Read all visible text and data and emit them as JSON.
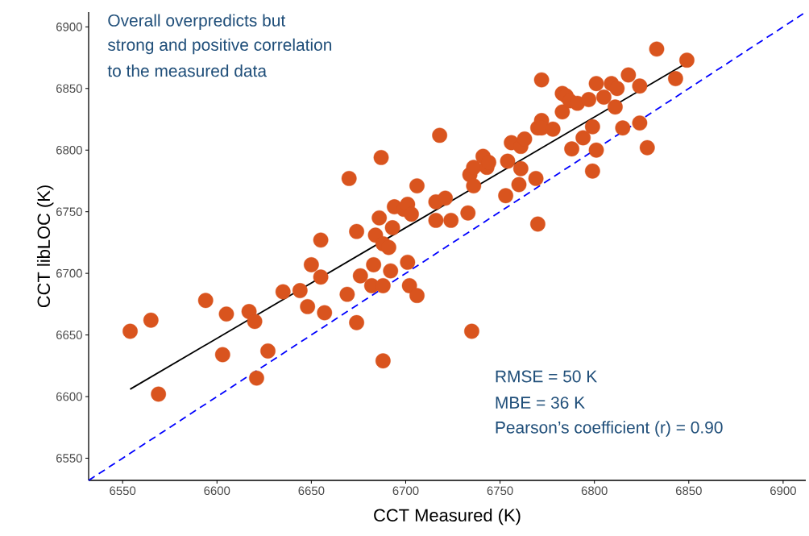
{
  "chart_data": {
    "type": "scatter",
    "xlabel": "CCT Measured (K)",
    "ylabel": "CCT libLOC (K)",
    "xlim": [
      6532,
      6912
    ],
    "ylim": [
      6532,
      6912
    ],
    "xticks": [
      6550,
      6600,
      6650,
      6700,
      6750,
      6800,
      6850,
      6900
    ],
    "yticks": [
      6550,
      6600,
      6650,
      6700,
      6750,
      6800,
      6850,
      6900
    ],
    "annotations": [
      "Overall overpredicts but",
      "strong and positive correlation",
      "to the measured data",
      "RMSE = 50 K",
      "MBE = 36 K",
      "Pearson’s coefficient (r) = 0.90"
    ],
    "series": [
      {
        "color": "#d9541e",
        "marker": "circle",
        "x": [
          6554,
          6565,
          6569,
          6594,
          6603,
          6605,
          6617,
          6620,
          6621,
          6627,
          6635,
          6644,
          6648,
          6655,
          6650,
          6655,
          6657,
          6669,
          6670,
          6674,
          6674,
          6676,
          6682,
          6683,
          6684,
          6686,
          6687,
          6688,
          6688,
          6688,
          6691,
          6692,
          6693,
          6694,
          6699,
          6701,
          6701,
          6702,
          6703,
          6706,
          6706,
          6716,
          6716,
          6718,
          6721,
          6724,
          6733,
          6735,
          6734,
          6736,
          6736,
          6741,
          6743,
          6744,
          6753,
          6754,
          6756,
          6760,
          6761,
          6761,
          6763,
          6770,
          6769,
          6770,
          6772,
          6772,
          6772,
          6778,
          6783,
          6783,
          6785,
          6788,
          6787,
          6791,
          6794,
          6797,
          6799,
          6799,
          6801,
          6801,
          6805,
          6809,
          6812,
          6811,
          6815,
          6818,
          6824,
          6824,
          6828,
          6833,
          6843,
          6849
        ],
        "values": [
          6653,
          6662,
          6602,
          6678,
          6634,
          6667,
          6669,
          6661,
          6615,
          6637,
          6685,
          6686,
          6673,
          6727,
          6707,
          6697,
          6668,
          6683,
          6777,
          6660,
          6734,
          6698,
          6690,
          6707,
          6731,
          6745,
          6794,
          6724,
          6629,
          6690,
          6721,
          6702,
          6737,
          6754,
          6752,
          6756,
          6709,
          6690,
          6748,
          6682,
          6771,
          6758,
          6743,
          6812,
          6761,
          6743,
          6749,
          6653,
          6780,
          6786,
          6771,
          6795,
          6786,
          6790,
          6763,
          6791,
          6806,
          6772,
          6785,
          6803,
          6809,
          6740,
          6777,
          6818,
          6824,
          6818,
          6857,
          6817,
          6831,
          6846,
          6844,
          6801,
          6840,
          6838,
          6810,
          6841,
          6819,
          6783,
          6854,
          6800,
          6843,
          6854,
          6850,
          6835,
          6818,
          6861,
          6852,
          6822,
          6802,
          6882,
          6858,
          6873
        ]
      },
      {
        "type": "line",
        "color": "#000000",
        "marker": "none",
        "line_style": "solid",
        "x": [
          6554,
          6847
        ],
        "values": [
          6606,
          6869
        ]
      },
      {
        "type": "line",
        "color": "#0000ff",
        "marker": "none",
        "line_style": "dashed",
        "x": [
          6532,
          6912
        ],
        "values": [
          6532,
          6912
        ]
      }
    ]
  }
}
